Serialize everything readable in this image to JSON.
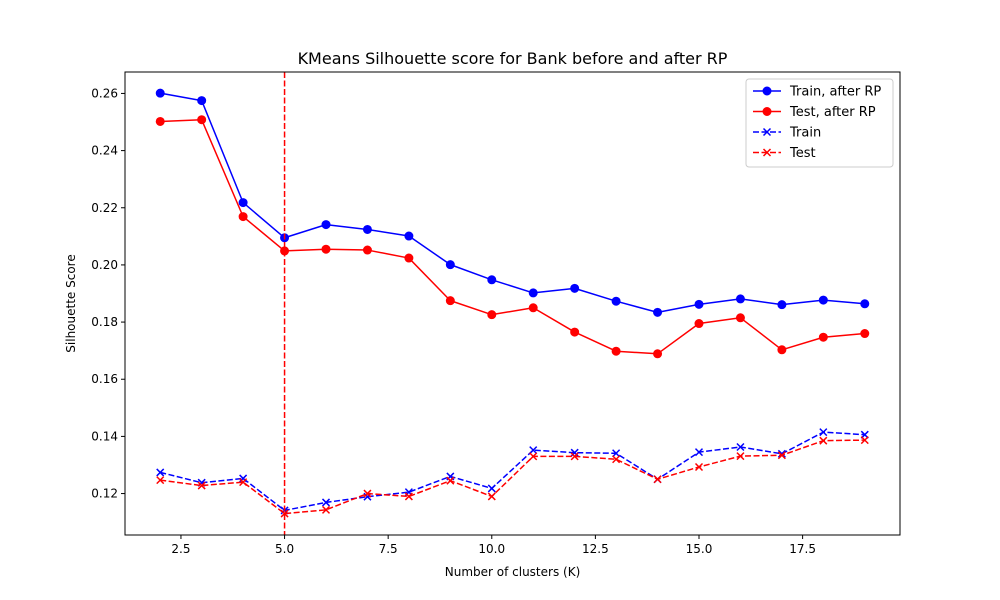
{
  "chart_data": {
    "type": "line",
    "title": "KMeans Silhouette score for Bank before and after RP",
    "xlabel": "Number of clusters (K)",
    "ylabel": "Silhouette Score",
    "xlim": [
      1.15,
      19.85
    ],
    "ylim": [
      0.1055,
      0.2675
    ],
    "x_ticks": [
      2.5,
      5.0,
      7.5,
      10.0,
      12.5,
      15.0,
      17.5
    ],
    "x_tick_labels": [
      "2.5",
      "5.0",
      "7.5",
      "10.0",
      "12.5",
      "15.0",
      "17.5"
    ],
    "y_ticks": [
      0.12,
      0.14,
      0.16,
      0.18,
      0.2,
      0.22,
      0.24,
      0.26
    ],
    "y_tick_labels": [
      "0.12",
      "0.14",
      "0.16",
      "0.18",
      "0.20",
      "0.22",
      "0.24",
      "0.26"
    ],
    "grid": false,
    "legend_position": "top-right",
    "vline": {
      "x": 5,
      "color": "#ff0000",
      "style": "dashed"
    },
    "x": [
      2,
      3,
      4,
      5,
      6,
      7,
      8,
      9,
      10,
      11,
      12,
      13,
      14,
      15,
      16,
      17,
      18,
      19
    ],
    "series": [
      {
        "name": "Train, after RP",
        "color": "#0000ff",
        "line_style": "solid",
        "marker": "circle",
        "values": [
          0.2601,
          0.2575,
          0.2218,
          0.2095,
          0.2141,
          0.2124,
          0.2101,
          0.2001,
          0.1948,
          0.1902,
          0.1918,
          0.1873,
          0.1834,
          0.1862,
          0.1881,
          0.1861,
          0.1877,
          0.1864
        ]
      },
      {
        "name": "Test, after RP",
        "color": "#ff0000",
        "line_style": "solid",
        "marker": "circle",
        "values": [
          0.2502,
          0.2508,
          0.2169,
          0.2049,
          0.2055,
          0.2052,
          0.2024,
          0.1875,
          0.1826,
          0.185,
          0.1765,
          0.1698,
          0.1689,
          0.1795,
          0.1815,
          0.1703,
          0.1747,
          0.176
        ]
      },
      {
        "name": "Train",
        "color": "#0000ff",
        "line_style": "dashed",
        "marker": "x",
        "values": [
          0.1274,
          0.1238,
          0.1253,
          0.1141,
          0.1169,
          0.1189,
          0.1205,
          0.126,
          0.1218,
          0.1352,
          0.1343,
          0.1341,
          0.125,
          0.1345,
          0.1363,
          0.1339,
          0.1415,
          0.1406
        ]
      },
      {
        "name": "Test",
        "color": "#ff0000",
        "line_style": "dashed",
        "marker": "x",
        "values": [
          0.1247,
          0.1228,
          0.124,
          0.113,
          0.1143,
          0.12,
          0.119,
          0.1245,
          0.119,
          0.133,
          0.133,
          0.132,
          0.125,
          0.1293,
          0.1331,
          0.1334,
          0.1385,
          0.1387
        ]
      }
    ]
  }
}
